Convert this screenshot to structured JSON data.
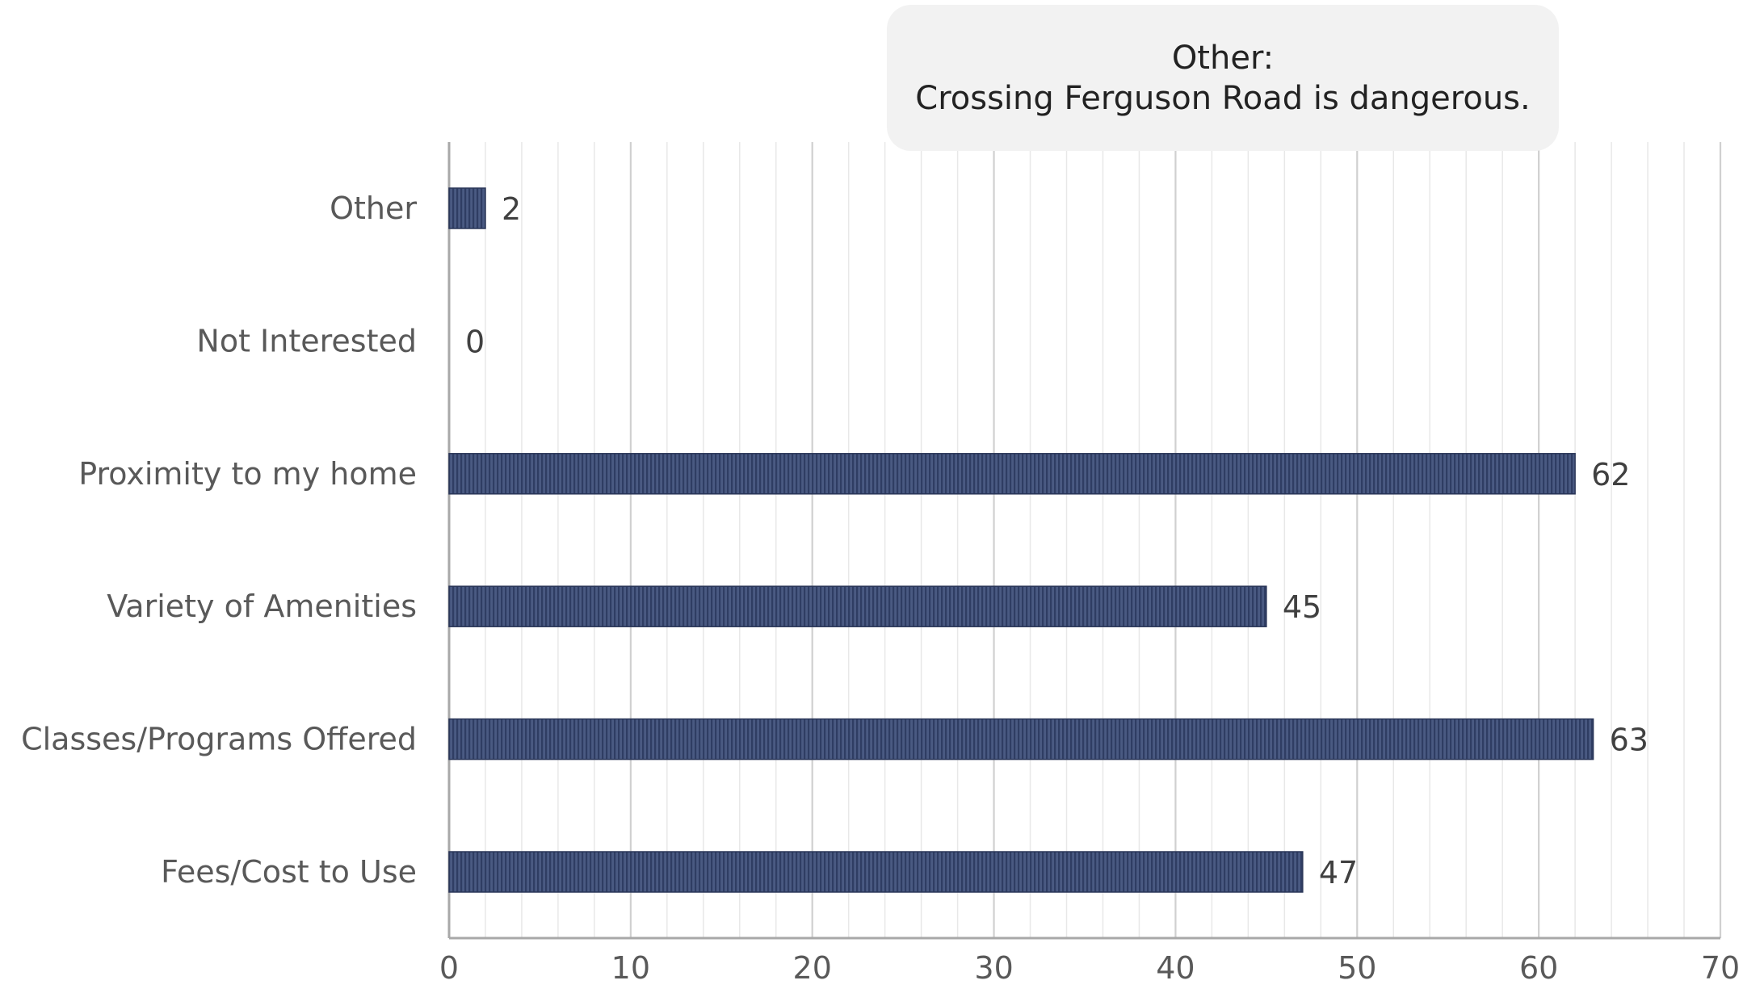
{
  "chart_data": {
    "type": "bar",
    "orientation": "horizontal",
    "categories": [
      "Other",
      "Not Interested",
      "Proximity to my home",
      "Variety of Amenities",
      "Classes/Programs Offered",
      "Fees/Cost to Use"
    ],
    "values": [
      2,
      0,
      62,
      45,
      63,
      47
    ],
    "data_labels": [
      "2",
      "0",
      "62",
      "45",
      "63",
      "47"
    ],
    "x_ticks": [
      "0",
      "10",
      "20",
      "30",
      "40",
      "50",
      "60",
      "70"
    ],
    "xlim": [
      0,
      70
    ],
    "minor_grid_step": 2,
    "grid": true,
    "title": "",
    "xlabel": "",
    "ylabel": "",
    "annotation": {
      "title": "Other:",
      "text": "Crossing Ferguson Road is dangerous."
    },
    "colors": {
      "bar": "#4a5a82",
      "bar_stripe": "#2f3d63",
      "bar_edge": "#2a3658",
      "grid_major": "#d0d0d0",
      "grid_minor": "#e8e8e8",
      "axis": "#a8a8a8",
      "category_text": "#595959",
      "value_text": "#404040",
      "tick_text": "#595959",
      "annotation_bg": "#f2f2f2"
    }
  }
}
